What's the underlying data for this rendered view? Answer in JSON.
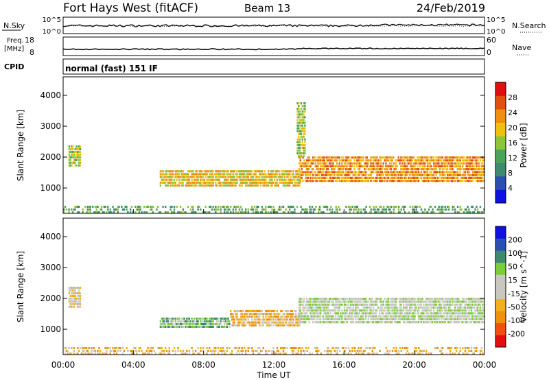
{
  "header": {
    "station": "Fort Hays West (fitACF)",
    "beam": "Beam 13",
    "date": "24/Feb/2019"
  },
  "noise_panel": {
    "left_label": "N.Sky",
    "left_ticks": [
      "10^5",
      "10^0"
    ],
    "right_label": "N.Search",
    "right_ticks": [
      "10^5",
      "10^0"
    ]
  },
  "freq_panel": {
    "left_label_line1": "Freq.",
    "left_label_line2": "[MHz]",
    "left_ticks": [
      "18",
      "8"
    ],
    "right_label": "Nave",
    "right_ticks": [
      "60",
      "0"
    ]
  },
  "cpid_panel": {
    "label": "CPID",
    "text": "normal (fast) 151 IF"
  },
  "colors": {
    "power": [
      "#1010e0",
      "#2a4fb0",
      "#3d8a6e",
      "#4aa35a",
      "#8cc43c",
      "#f0c010",
      "#f09010",
      "#e05010",
      "#e01010"
    ],
    "velocity": [
      "#e01010",
      "#f05010",
      "#f09010",
      "#f0b020",
      "#c8c8c0",
      "#c8c8c0",
      "#7ccc3c",
      "#3d8a6e",
      "#2a4fb0",
      "#1010e0"
    ]
  },
  "chart_data": [
    {
      "type": "heatmap",
      "name": "power",
      "ylabel": "Slant Range [km]",
      "yticks": [
        "1000",
        "2000",
        "3000",
        "4000"
      ],
      "ylim": [
        180,
        4600
      ],
      "colorbar_label": "Power [dB]",
      "colorbar_ticks": [
        "4",
        "8",
        "12",
        "16",
        "20",
        "24",
        "28"
      ],
      "features": [
        {
          "t0": 0.3,
          "t1": 1.0,
          "r0": 1700,
          "r1": 2400,
          "level": 4
        },
        {
          "t0": 5.5,
          "t1": 13.5,
          "r0": 1050,
          "r1": 1600,
          "level": 5
        },
        {
          "t0": 13.4,
          "t1": 24.0,
          "r0": 1200,
          "r1": 2050,
          "level": 6
        },
        {
          "t0": 13.3,
          "t1": 13.8,
          "r0": 2000,
          "r1": 3800,
          "level": 4
        },
        {
          "t0": 0.0,
          "t1": 24.0,
          "r0": 180,
          "r1": 450,
          "level": 3
        }
      ]
    },
    {
      "type": "heatmap",
      "name": "velocity",
      "ylabel": "Slant Range [km]",
      "yticks": [
        "1000",
        "2000",
        "3000",
        "4000"
      ],
      "ylim": [
        180,
        4600
      ],
      "colorbar_label": "Velocity [m s^-1]",
      "colorbar_ticks": [
        "-200",
        "-100",
        "-50",
        "-15",
        "15",
        "50",
        "100",
        "200"
      ],
      "features": [
        {
          "t0": 0.3,
          "t1": 1.0,
          "r0": 1700,
          "r1": 2400,
          "level": 4
        },
        {
          "t0": 5.5,
          "t1": 9.5,
          "r0": 1050,
          "r1": 1400,
          "level": 6
        },
        {
          "t0": 9.5,
          "t1": 13.5,
          "r0": 1100,
          "r1": 1650,
          "level": 3
        },
        {
          "t0": 13.4,
          "t1": 24.0,
          "r0": 1200,
          "r1": 2050,
          "level": 5
        },
        {
          "t0": 0.0,
          "t1": 24.0,
          "r0": 180,
          "r1": 450,
          "level": 3
        }
      ]
    }
  ],
  "time_axis": {
    "label": "Time UT",
    "ticks": [
      "00:00",
      "04:00",
      "08:00",
      "12:00",
      "16:00",
      "20:00",
      "00:00"
    ]
  }
}
